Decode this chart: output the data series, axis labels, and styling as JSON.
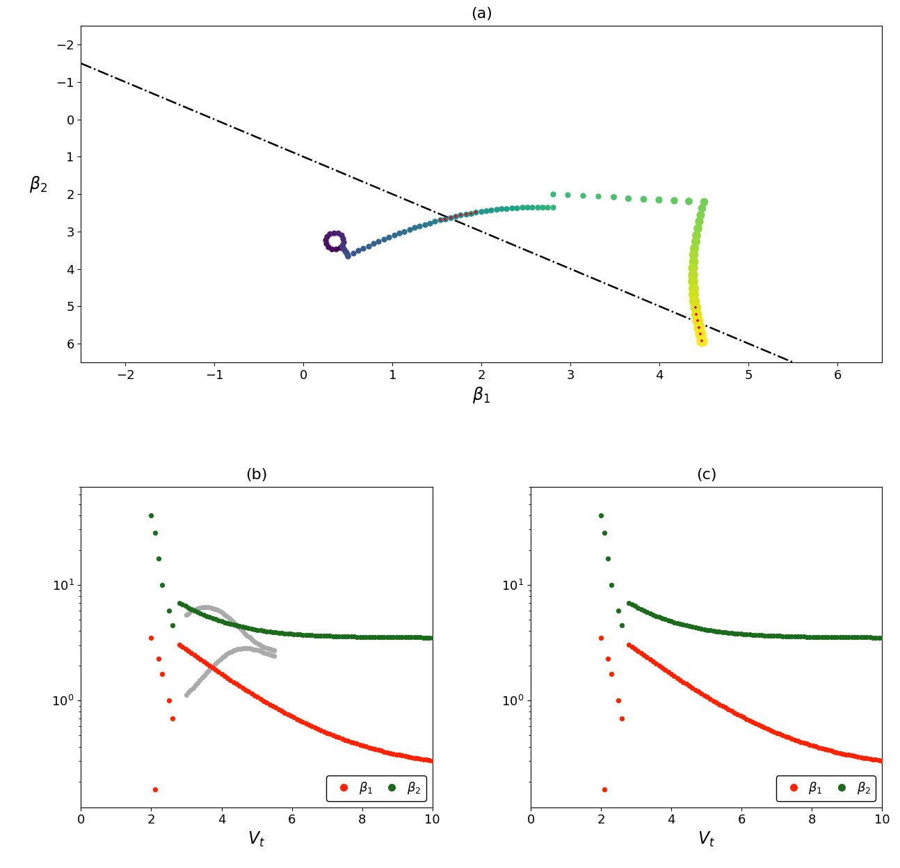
{
  "panel_a": {
    "title": "(a)",
    "xlabel": "β_1",
    "ylabel": "β_2",
    "xlim": [
      -2.5,
      6.5
    ],
    "ylim": [
      6.5,
      -2.5
    ],
    "xticks": [
      -2,
      -1,
      0,
      1,
      2,
      3,
      4,
      5,
      6
    ],
    "yticks": [
      -2,
      -1,
      0,
      1,
      2,
      3,
      4,
      5,
      6
    ]
  },
  "panel_b": {
    "title": "(b)",
    "xlabel": "V_t",
    "xlim": [
      0,
      10
    ],
    "ylim": [
      0.12,
      70
    ],
    "xticks": [
      0,
      2,
      4,
      6,
      8,
      10
    ]
  },
  "panel_c": {
    "title": "(c)",
    "xlabel": "V_t",
    "xlim": [
      0,
      10
    ],
    "ylim": [
      0.12,
      70
    ],
    "xticks": [
      0,
      2,
      4,
      6,
      8,
      10
    ]
  }
}
